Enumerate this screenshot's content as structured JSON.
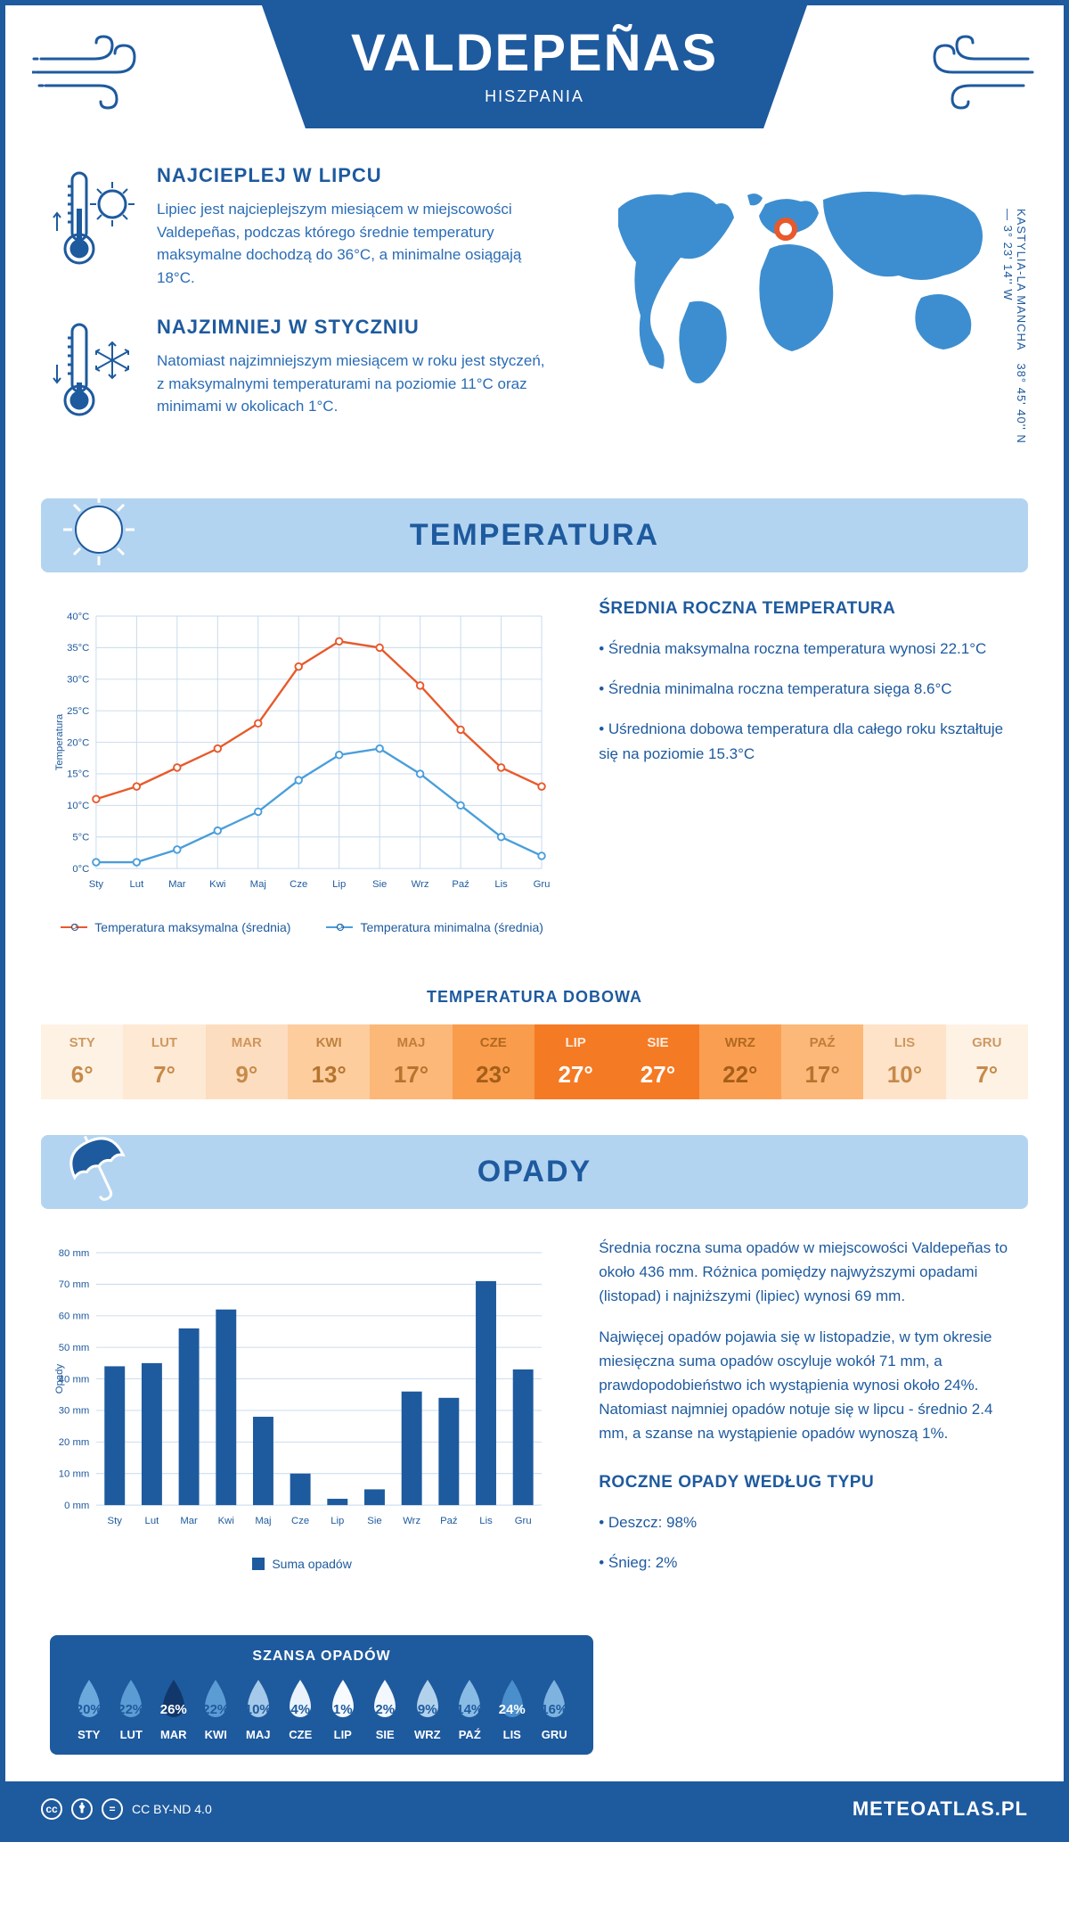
{
  "header": {
    "title": "VALDEPEÑAS",
    "subtitle": "HISZPANIA"
  },
  "coords": {
    "lat": "38° 45' 40'' N — 3° 23' 14'' W",
    "region": "KASTYLIA-LA MANCHA"
  },
  "hot": {
    "title": "NAJCIEPLEJ W LIPCU",
    "text": "Lipiec jest najcieplejszym miesiącem w miejscowości Valdepeñas, podczas którego średnie temperatury maksymalne dochodzą do 36°C, a minimalne osiągają 18°C."
  },
  "cold": {
    "title": "NAJZIMNIEJ W STYCZNIU",
    "text": "Natomiast najzimniejszym miesiącem w roku jest styczeń, z maksymalnymi temperaturami na poziomie 11°C oraz minimami w okolicach 1°C."
  },
  "section_temp": "TEMPERATURA",
  "section_opady": "OPADY",
  "temp_chart": {
    "type": "line",
    "ylabel": "Temperatura",
    "months": [
      "Sty",
      "Lut",
      "Mar",
      "Kwi",
      "Maj",
      "Cze",
      "Lip",
      "Sie",
      "Wrz",
      "Paź",
      "Lis",
      "Gru"
    ],
    "max_values": [
      11,
      13,
      16,
      19,
      23,
      32,
      36,
      35,
      29,
      22,
      16,
      13
    ],
    "min_values": [
      1,
      1,
      3,
      6,
      9,
      14,
      18,
      19,
      15,
      10,
      5,
      2
    ],
    "max_color": "#e8592b",
    "min_color": "#4a9edb",
    "ylim": [
      0,
      40
    ],
    "ytick_step": 5,
    "grid_color": "#c5d9ec",
    "legend_max": "Temperatura maksymalna (średnia)",
    "legend_min": "Temperatura minimalna (średnia)"
  },
  "annual_temp": {
    "title": "ŚREDNIA ROCZNA TEMPERATURA",
    "b1": "• Średnia maksymalna roczna temperatura wynosi 22.1°C",
    "b2": "• Średnia minimalna roczna temperatura sięga 8.6°C",
    "b3": "• Uśredniona dobowa temperatura dla całego roku kształtuje się na poziomie 15.3°C"
  },
  "daily_temp": {
    "title": "TEMPERATURA DOBOWA",
    "months": [
      "STY",
      "LUT",
      "MAR",
      "KWI",
      "MAJ",
      "CZE",
      "LIP",
      "SIE",
      "WRZ",
      "PAŹ",
      "LIS",
      "GRU"
    ],
    "values": [
      "6°",
      "7°",
      "9°",
      "13°",
      "17°",
      "23°",
      "27°",
      "27°",
      "22°",
      "17°",
      "10°",
      "7°"
    ],
    "colors": [
      "#fef2e5",
      "#fee9d5",
      "#fdddbf",
      "#fdcd9e",
      "#fcb879",
      "#f99c4c",
      "#f57a24",
      "#f57a24",
      "#fa9f52",
      "#fcb879",
      "#fee3c9",
      "#fef2e5"
    ],
    "text_colors": [
      "#c78a4a",
      "#c78a4a",
      "#c78a4a",
      "#b5752f",
      "#b5752f",
      "#a55f18",
      "#ffffff",
      "#ffffff",
      "#a55f18",
      "#b5752f",
      "#c78a4a",
      "#c78a4a"
    ]
  },
  "precip_chart": {
    "type": "bar",
    "ylabel": "Opady",
    "months": [
      "Sty",
      "Lut",
      "Mar",
      "Kwi",
      "Maj",
      "Cze",
      "Lip",
      "Sie",
      "Wrz",
      "Paź",
      "Lis",
      "Gru"
    ],
    "values": [
      44,
      45,
      56,
      62,
      28,
      10,
      2,
      5,
      36,
      34,
      71,
      43
    ],
    "bar_color": "#1e5a9e",
    "ylim": [
      0,
      80
    ],
    "ytick_step": 10,
    "grid_color": "#c5d9ec",
    "legend": "Suma opadów"
  },
  "precip_text": {
    "p1": "Średnia roczna suma opadów w miejscowości Valdepeñas to około 436 mm. Różnica pomiędzy najwyższymi opadami (listopad) i najniższymi (lipiec) wynosi 69 mm.",
    "p2": "Najwięcej opadów pojawia się w listopadzie, w tym okresie miesięczna suma opadów oscyluje wokół 71 mm, a prawdopodobieństwo ich wystąpienia wynosi około 24%. Natomiast najmniej opadów notuje się w lipcu - średnio 2.4 mm, a szanse na wystąpienie opadów wynoszą 1%."
  },
  "chance": {
    "title": "SZANSA OPADÓW",
    "months": [
      "STY",
      "LUT",
      "MAR",
      "KWI",
      "MAJ",
      "CZE",
      "LIP",
      "SIE",
      "WRZ",
      "PAŹ",
      "LIS",
      "GRU"
    ],
    "values": [
      "20%",
      "22%",
      "26%",
      "22%",
      "10%",
      "4%",
      "1%",
      "2%",
      "9%",
      "14%",
      "24%",
      "16%"
    ],
    "fills": [
      "#6ba9dd",
      "#5c9cd4",
      "#11376b",
      "#5c9cd4",
      "#a5c9e8",
      "#eaf3fb",
      "#f7fbfe",
      "#f2f8fd",
      "#b2d2ec",
      "#88bce4",
      "#4a8ecb",
      "#7eb3e0"
    ],
    "text_colors": [
      "#1e5a9e",
      "#1e5a9e",
      "#ffffff",
      "#1e5a9e",
      "#1e5a9e",
      "#1e5a9e",
      "#1e5a9e",
      "#1e5a9e",
      "#1e5a9e",
      "#1e5a9e",
      "#ffffff",
      "#1e5a9e"
    ]
  },
  "precip_type": {
    "title": "ROCZNE OPADY WEDŁUG TYPU",
    "b1": "• Deszcz: 98%",
    "b2": "• Śnieg: 2%"
  },
  "footer": {
    "license": "CC BY-ND 4.0",
    "site": "METEOATLAS.PL"
  }
}
